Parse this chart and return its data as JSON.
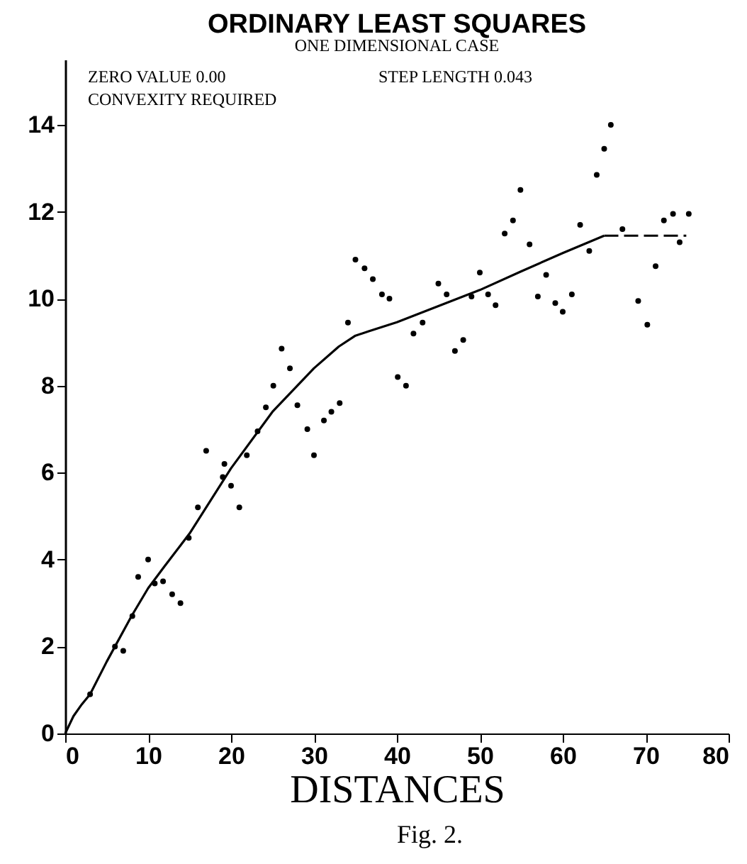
{
  "chart_data": {
    "type": "scatter",
    "title": "ORDINARY LEAST SQUARES",
    "subtitle": "ONE DIMENSIONAL CASE",
    "xlabel": "DISTANCES",
    "annotations": [
      "ZERO VALUE 0.00",
      "STEP LENGTH 0.043",
      "CONVEXITY REQUIRED",
      "Fig. 2."
    ],
    "xlim": [
      0,
      80
    ],
    "xticks": [
      0,
      10,
      20,
      30,
      40,
      50,
      60,
      70,
      80
    ],
    "ylim": [
      0,
      15.5
    ],
    "yticks": [
      0,
      2,
      4,
      6,
      8,
      10,
      12,
      14
    ],
    "grid": false,
    "series": [
      {
        "marker": "circle",
        "color": "#000000",
        "x": [
          3.0,
          6.0,
          7.0,
          8.1,
          8.8,
          10.0,
          10.8,
          11.8,
          12.9,
          13.9,
          14.9,
          16.0,
          17.0,
          19.0,
          19.2,
          20.0,
          21.0,
          21.9,
          23.2,
          24.2,
          25.1,
          26.1,
          27.1,
          28.0,
          29.2,
          30.0,
          31.2,
          32.1,
          33.1,
          34.1,
          35.0,
          36.1,
          37.1,
          38.2,
          39.1,
          40.1,
          41.1,
          42.0,
          43.1,
          45.0,
          46.0,
          47.0,
          48.0,
          49.0,
          50.0,
          51.0,
          51.9,
          53.0,
          54.0,
          54.9,
          56.0,
          57.0,
          58.0,
          59.1,
          60.0,
          61.1,
          62.1,
          63.2,
          64.1,
          65.0,
          65.8,
          67.2,
          69.1,
          70.2,
          71.2,
          72.2,
          73.3,
          74.1,
          75.2
        ],
        "values": [
          0.9,
          2.0,
          1.9,
          2.7,
          3.6,
          4.0,
          3.45,
          3.5,
          3.2,
          3.0,
          4.5,
          5.2,
          6.5,
          5.9,
          6.2,
          5.7,
          5.2,
          6.4,
          6.95,
          7.5,
          8.0,
          8.85,
          8.4,
          7.55,
          7.0,
          6.4,
          7.2,
          7.4,
          7.6,
          9.45,
          10.9,
          10.7,
          10.45,
          10.1,
          10.0,
          8.2,
          8.0,
          9.2,
          9.45,
          10.35,
          10.1,
          8.8,
          9.05,
          10.05,
          10.6,
          10.1,
          9.85,
          11.5,
          11.8,
          12.5,
          11.25,
          10.05,
          10.55,
          9.9,
          9.7,
          10.1,
          11.7,
          11.1,
          12.85,
          13.45,
          14.0,
          11.6,
          9.95,
          9.4,
          10.75,
          11.8,
          11.95,
          11.3,
          11.95
        ]
      },
      {
        "type": "line",
        "line_style": "solid",
        "color": "#000000",
        "x": [
          0,
          1,
          2,
          3,
          5,
          8,
          10,
          12,
          15,
          20,
          25,
          30,
          33,
          35,
          36.6,
          40,
          45,
          50,
          55,
          60,
          65
        ],
        "values": [
          0,
          0.4,
          0.67,
          0.9,
          1.65,
          2.7,
          3.34,
          3.85,
          4.6,
          6.1,
          7.4,
          8.4,
          8.9,
          9.15,
          9.25,
          9.46,
          9.83,
          10.2,
          10.63,
          11.05,
          11.45
        ]
      },
      {
        "type": "line",
        "line_style": "dashed",
        "color": "#000000",
        "x": [
          65,
          74.9
        ],
        "values": [
          11.45,
          11.45
        ]
      }
    ]
  }
}
